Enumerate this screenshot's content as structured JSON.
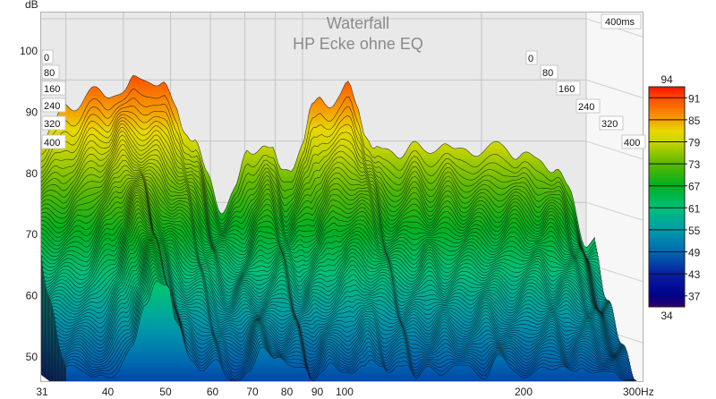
{
  "chart_data": {
    "type": "waterfall",
    "title": "Waterfall",
    "subtitle": "HP Ecke ohne EQ",
    "ylabel": "dB",
    "xlabel_unit": "Hz",
    "ylim": [
      46,
      106
    ],
    "xlim": [
      31,
      300
    ],
    "x_scale": "log",
    "y_ticks": [
      "100",
      "90",
      "80",
      "70",
      "60",
      "50"
    ],
    "x_ticks": [
      "31",
      "40",
      "50",
      "60",
      "70",
      "80",
      "90",
      "100",
      "200",
      "300Hz"
    ],
    "time_axis_label": "400ms",
    "time_ticks_left": [
      "0",
      "80",
      "160",
      "240",
      "320",
      "400"
    ],
    "time_ticks_right": [
      "0",
      "80",
      "160",
      "240",
      "320",
      "400"
    ],
    "time_range_ms": [
      0,
      400
    ],
    "colorbar": {
      "min_label": "34",
      "max_label": "94",
      "ticks": [
        "91",
        "85",
        "79",
        "73",
        "67",
        "61",
        "55",
        "49",
        "43",
        "37"
      ],
      "colors": [
        {
          "db": 94,
          "color": "#ff1200"
        },
        {
          "db": 91,
          "color": "#ff4a00"
        },
        {
          "db": 85,
          "color": "#f5a000"
        },
        {
          "db": 82,
          "color": "#e8d800"
        },
        {
          "db": 79,
          "color": "#c8d400"
        },
        {
          "db": 73,
          "color": "#5cb800"
        },
        {
          "db": 67,
          "color": "#00b020"
        },
        {
          "db": 61,
          "color": "#00c078"
        },
        {
          "db": 55,
          "color": "#009ca8"
        },
        {
          "db": 49,
          "color": "#0068b0"
        },
        {
          "db": 43,
          "color": "#0820a0"
        },
        {
          "db": 37,
          "color": "#000090"
        },
        {
          "db": 34,
          "color": "#300068"
        }
      ]
    },
    "freq_hz": [
      36.5,
      38.2,
      40.2,
      44,
      46.3,
      48.4,
      50.4,
      52.2,
      55,
      58,
      61.1,
      63.3,
      65.6,
      69.2,
      73,
      76.9,
      81.1,
      85.6,
      88.6,
      91.8,
      95,
      100.1,
      103.7,
      107.4,
      111.2,
      115.1,
      119.2,
      123.4,
      127.8,
      132.3,
      136.9,
      144.3,
      152.1,
      160.3,
      171.8,
      181,
      190.8,
      204.6,
      219.3,
      231.2,
      243.7,
      252.3,
      265.9,
      280.3,
      301
    ],
    "level_0ms_db": [
      81.1,
      82.6,
      85.5,
      87.8,
      87.3,
      88.7,
      87.8,
      89.6,
      90.9,
      88.9,
      85.5,
      82.6,
      80.4,
      73.8,
      69.4,
      71.6,
      78.2,
      80.1,
      78.2,
      74.6,
      76,
      79.7,
      84.8,
      87,
      86.7,
      87.3,
      88.5,
      85.8,
      81.9,
      79,
      77.5,
      78.2,
      79.7,
      77.5,
      80.4,
      77.5,
      79,
      78.2,
      79.7,
      77.5,
      76.7,
      77.5,
      75.3,
      71.6,
      63.6
    ],
    "level_400ms_db": [
      48,
      47,
      46,
      52,
      58,
      63,
      62,
      55,
      50,
      48,
      49,
      47,
      46,
      47,
      52,
      50,
      48,
      49,
      46,
      47,
      49,
      48,
      47,
      48,
      50,
      49,
      47,
      48,
      49,
      47,
      48,
      47,
      49,
      48,
      47,
      50,
      48,
      47,
      48,
      49,
      47,
      48,
      48,
      47,
      46
    ]
  }
}
